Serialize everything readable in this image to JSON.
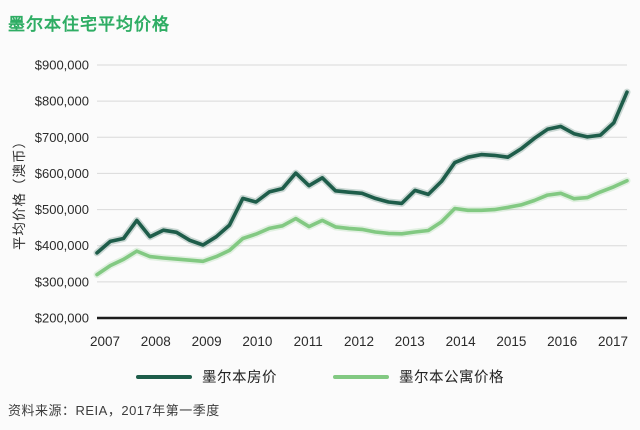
{
  "title": "墨尔本住宅平均价格",
  "footer": {
    "source": "资料来源：REIA，2017年第一季度"
  },
  "colors": {
    "title_green": "#2fad64",
    "house_line": "#1e5d4a",
    "apartment_line": "#82c982",
    "grid": "#dadada",
    "axis": "#1c1c1c",
    "tick_text": "#2b2b2b"
  },
  "chart_data": {
    "type": "line",
    "title": "墨尔本住宅平均价格",
    "xlabel": "",
    "ylabel": "平均价格（澳币）",
    "ylim": [
      200000,
      900000
    ],
    "grid": true,
    "legend_position": "bottom",
    "ytick_values": [
      200000,
      300000,
      400000,
      500000,
      600000,
      700000,
      800000,
      900000
    ],
    "ytick_labels": [
      "$200,000",
      "$300,000",
      "$400,000",
      "$500,000",
      "$600,000",
      "$700,000",
      "$800,000",
      "$900,000"
    ],
    "xtick_labels": [
      "2007",
      "2008",
      "2009",
      "2010",
      "2011",
      "2012",
      "2013",
      "2014",
      "2015",
      "2016",
      "2017"
    ],
    "x_note": "quarterly points, 2007 Q1 through 2017 Q1",
    "series": [
      {
        "name": "墨尔本房价",
        "color_key": "house_line",
        "values": [
          380000,
          412000,
          420000,
          470000,
          425000,
          443000,
          437000,
          415000,
          402000,
          425000,
          457000,
          531000,
          521000,
          549000,
          558000,
          601000,
          566000,
          588000,
          552000,
          548000,
          545000,
          531000,
          521000,
          517000,
          553000,
          542000,
          578000,
          630000,
          645000,
          652000,
          650000,
          645000,
          668000,
          697000,
          722000,
          730000,
          710000,
          701000,
          706000,
          740000,
          825000
        ]
      },
      {
        "name": "墨尔本公寓价格",
        "color_key": "apartment_line",
        "values": [
          320000,
          345000,
          362000,
          385000,
          370000,
          366000,
          363000,
          360000,
          357000,
          370000,
          387000,
          420000,
          432000,
          448000,
          455000,
          475000,
          453000,
          470000,
          452000,
          448000,
          445000,
          438000,
          434000,
          433000,
          438000,
          442000,
          466000,
          503000,
          498000,
          498000,
          500000,
          506000,
          513000,
          525000,
          540000,
          545000,
          530000,
          533000,
          549000,
          563000,
          580000
        ]
      }
    ]
  }
}
